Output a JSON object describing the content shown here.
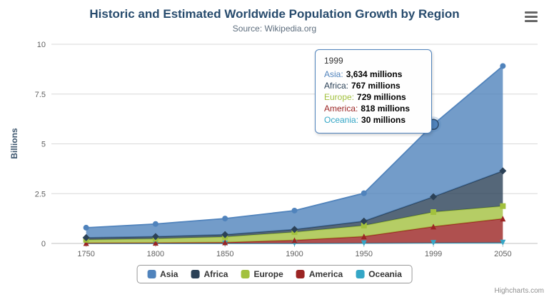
{
  "colors": {
    "title": "#274B6D",
    "subtitle": "#5E6E7E",
    "axis_label": "#606060",
    "axis_title": "#3E576F",
    "grid_line": "#D8D8D8",
    "axis_line": "#C0C0C0",
    "legend_border": "#999999",
    "legend_text": "#333333",
    "credits_text": "#909090",
    "tooltip_background": "#FEFEFE"
  },
  "chart_data": {
    "type": "area",
    "stacking": "normal",
    "title": "Historic and Estimated Worldwide Population Growth by Region",
    "subtitle": "Source: Wikipedia.org",
    "xlabel": "",
    "ylabel": "Billions",
    "unit": "millions",
    "categories": [
      "1750",
      "1800",
      "1850",
      "1900",
      "1950",
      "1999",
      "2050"
    ],
    "ylim": [
      0,
      10
    ],
    "yticks": [
      0,
      2.5,
      5,
      7.5,
      10
    ],
    "grid": true,
    "legend_position": "bottom",
    "series": [
      {
        "name": "Asia",
        "color": "#5083BC",
        "marker": "circle",
        "values_millions": [
          502,
          635,
          809,
          947,
          1402,
          3634,
          5268
        ]
      },
      {
        "name": "Africa",
        "color": "#2B4157",
        "marker": "diamond",
        "values_millions": [
          106,
          107,
          111,
          133,
          221,
          767,
          1766
        ]
      },
      {
        "name": "Europe",
        "color": "#A2C13E",
        "marker": "square",
        "values_millions": [
          163,
          203,
          276,
          408,
          547,
          729,
          628
        ]
      },
      {
        "name": "America",
        "color": "#9B2423",
        "marker": "triangle",
        "values_millions": [
          18,
          31,
          54,
          156,
          339,
          818,
          1201
        ]
      },
      {
        "name": "Oceania",
        "color": "#34A6C6",
        "marker": "triangle-down",
        "values_millions": [
          2,
          2,
          2,
          6,
          13,
          30,
          46
        ]
      }
    ],
    "stack_order_bottom_to_top": [
      "Oceania",
      "America",
      "Europe",
      "Africa",
      "Asia"
    ],
    "hovered_point": {
      "series": "Asia",
      "category": "1999"
    }
  },
  "tooltip": {
    "header": "1999",
    "rows": [
      {
        "series": "Asia",
        "label": "Asia:",
        "value": "3,634 millions"
      },
      {
        "series": "Africa",
        "label": "Africa:",
        "value": "767 millions"
      },
      {
        "series": "Europe",
        "label": "Europe:",
        "value": "729 millions"
      },
      {
        "series": "America",
        "label": "America:",
        "value": "818 millions"
      },
      {
        "series": "Oceania",
        "label": "Oceania:",
        "value": "30 millions"
      }
    ]
  },
  "credits": {
    "label": "Highcharts.com"
  }
}
